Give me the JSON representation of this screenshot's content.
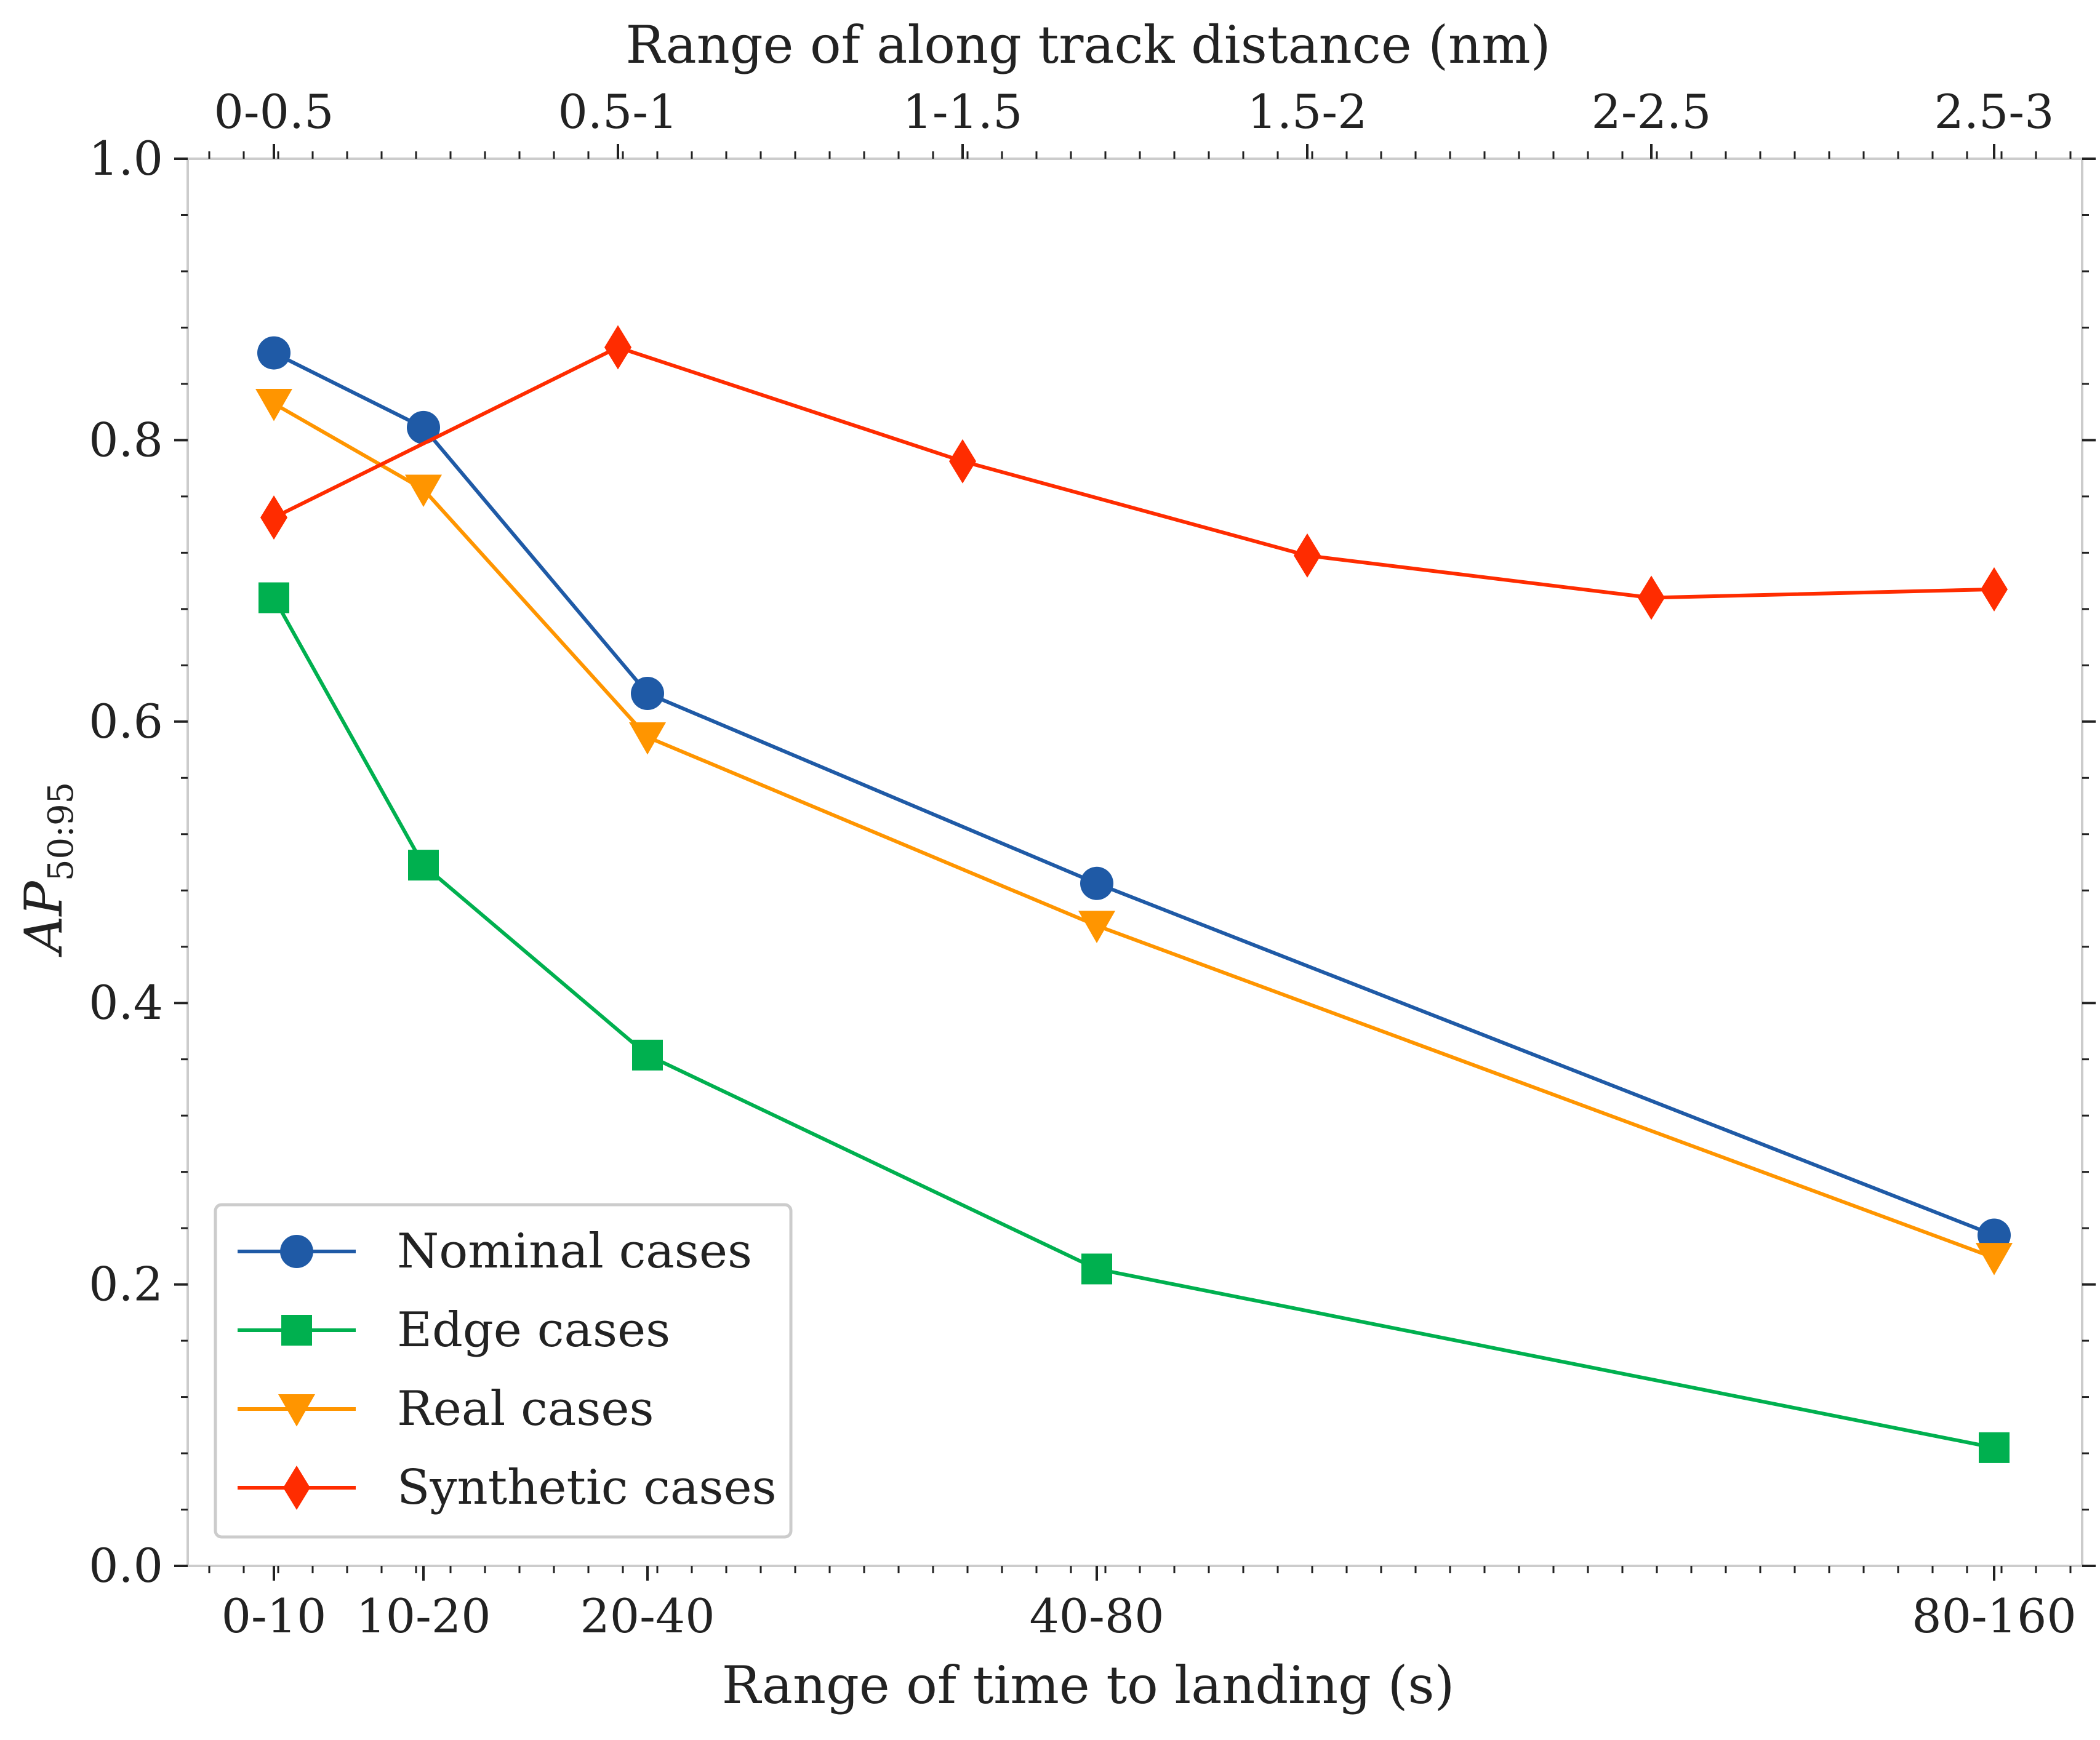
{
  "chart_data": {
    "type": "line",
    "xlabel": "Range of time to landing (s)",
    "x2label": "Range of along track distance (nm)",
    "ylabel": "AP",
    "ylabel_subscript": "50:95",
    "ylim": [
      0,
      1
    ],
    "yticks": [
      "0.0",
      "0.2",
      "0.4",
      "0.6",
      "0.8",
      "1.0"
    ],
    "grid": false,
    "legend_position": "lower-left",
    "bottom_axis": {
      "labels": [
        "0-10",
        "10-20",
        "20-40",
        "40-80",
        "80-160"
      ]
    },
    "top_axis": {
      "labels": [
        "0-0.5",
        "0.5-1",
        "1-1.5",
        "1.5-2",
        "2-2.5",
        "2.5-3"
      ]
    },
    "series": [
      {
        "name": "Nominal cases",
        "color": "#1f5aa6",
        "marker": "circle",
        "axis": "bottom",
        "categories": [
          "0-10",
          "10-20",
          "20-40",
          "40-80",
          "80-160"
        ],
        "values": [
          0.862,
          0.809,
          0.62,
          0.485,
          0.235
        ]
      },
      {
        "name": "Edge cases",
        "color": "#00b04f",
        "marker": "square",
        "axis": "bottom",
        "categories": [
          "0-10",
          "10-20",
          "20-40",
          "40-80",
          "80-160"
        ],
        "values": [
          0.688,
          0.498,
          0.363,
          0.211,
          0.084
        ]
      },
      {
        "name": "Real cases",
        "color": "#ff9500",
        "marker": "triangle-down",
        "axis": "bottom",
        "categories": [
          "0-10",
          "10-20",
          "20-40",
          "40-80",
          "80-160"
        ],
        "values": [
          0.826,
          0.765,
          0.589,
          0.455,
          0.219
        ]
      },
      {
        "name": "Synthetic cases",
        "color": "#ff2c00",
        "marker": "diamond",
        "axis": "top",
        "categories": [
          "0-0.5",
          "0.5-1",
          "1-1.5",
          "1.5-2",
          "2-2.5",
          "2.5-3"
        ],
        "values": [
          0.745,
          0.866,
          0.785,
          0.718,
          0.688,
          0.694
        ]
      }
    ]
  }
}
